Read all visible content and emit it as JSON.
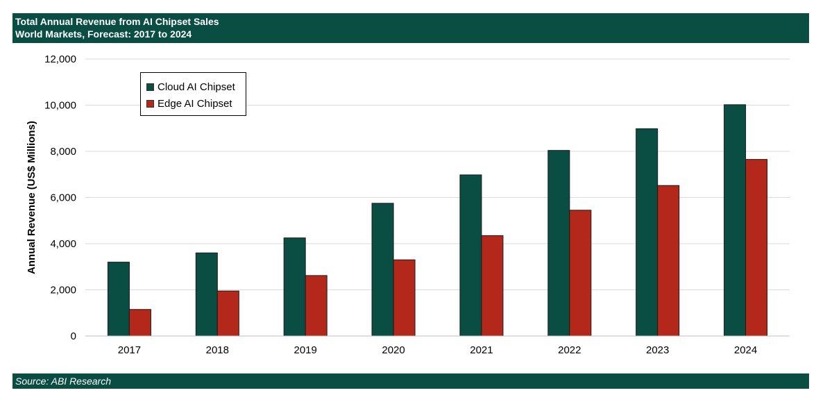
{
  "header": {
    "title_line1": "Total Annual Revenue from AI Chipset Sales",
    "title_line2": "World Markets, Forecast: 2017 to 2024"
  },
  "footer": {
    "source": "Source: ABI Research"
  },
  "colors": {
    "header_bg": "#0a4d43",
    "cloud": "#0a4d43",
    "edge": "#b4271b"
  },
  "chart_data": {
    "type": "bar",
    "ylabel": "Annual Revenue (US$ Millions)",
    "xlabel": "",
    "ylim": [
      0,
      12000
    ],
    "yticks": [
      0,
      2000,
      4000,
      6000,
      8000,
      10000,
      12000
    ],
    "ytick_labels": [
      "0",
      "2,000",
      "4,000",
      "6,000",
      "8,000",
      "10,000",
      "12,000"
    ],
    "categories": [
      "2017",
      "2018",
      "2019",
      "2020",
      "2021",
      "2022",
      "2023",
      "2024"
    ],
    "grid": true,
    "legend_position": "top-left",
    "series": [
      {
        "name": "Cloud AI Chipset",
        "values": [
          3200,
          3600,
          4250,
          5750,
          6980,
          8040,
          8980,
          10020
        ]
      },
      {
        "name": "Edge AI Chipset",
        "values": [
          1150,
          1950,
          2620,
          3300,
          4350,
          5450,
          6520,
          7650
        ]
      }
    ]
  }
}
